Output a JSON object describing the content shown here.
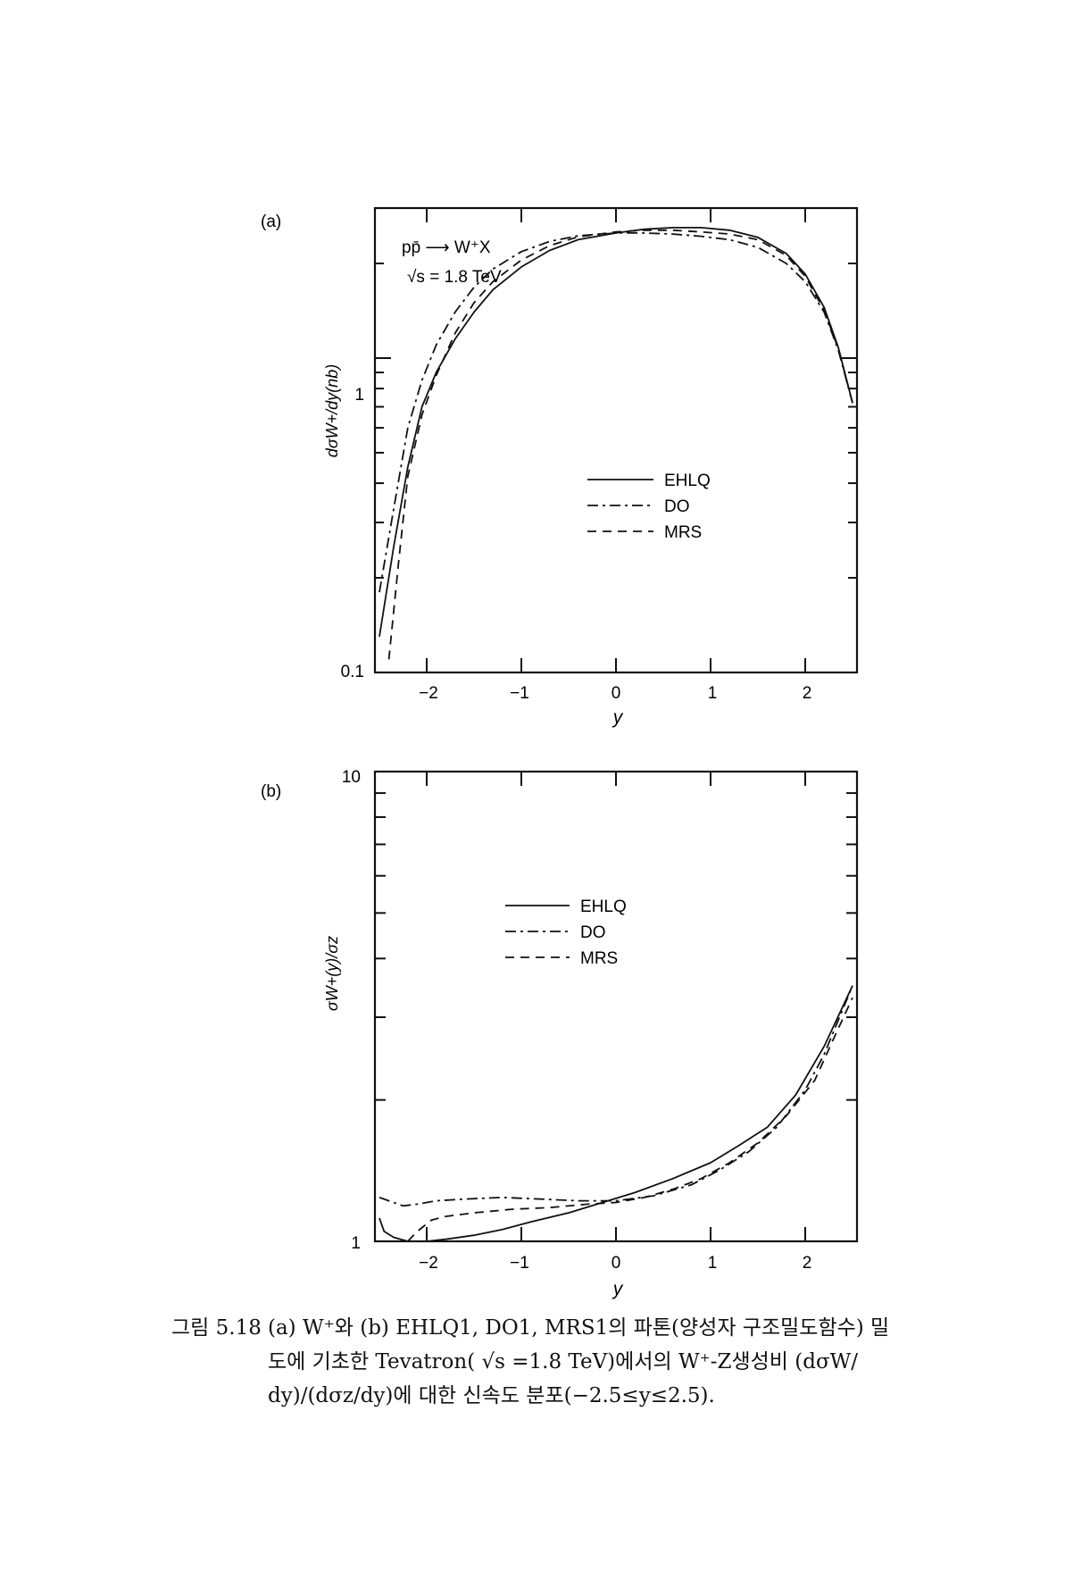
{
  "chart_data": [
    {
      "type": "line",
      "panel_label": "(a)",
      "annotation": [
        "pp̄ ⟶ W⁺X",
        "√s = 1.8 TeV"
      ],
      "xlabel": "y",
      "ylabel": "dσW+/dy(nb)",
      "xlim": [
        -2.5,
        2.5
      ],
      "ylim": [
        0.1,
        3.0
      ],
      "yscale": "log",
      "x_ticks": [
        "−2",
        "−1",
        "0",
        "1",
        "2"
      ],
      "y_ticks": [
        "0.1",
        "1"
      ],
      "legend_position": "center-right",
      "series": [
        {
          "name": "EHLQ",
          "style": "solid",
          "x": [
            -2.5,
            -2.35,
            -2.2,
            -2.05,
            -1.9,
            -1.7,
            -1.5,
            -1.3,
            -1.0,
            -0.7,
            -0.4,
            0.0,
            0.3,
            0.6,
            0.9,
            1.2,
            1.5,
            1.8,
            2.0,
            2.2,
            2.35,
            2.5
          ],
          "y": [
            0.13,
            0.25,
            0.45,
            0.7,
            0.9,
            1.15,
            1.4,
            1.65,
            1.95,
            2.2,
            2.38,
            2.5,
            2.57,
            2.6,
            2.6,
            2.55,
            2.42,
            2.15,
            1.85,
            1.45,
            1.08,
            0.72
          ]
        },
        {
          "name": "DO",
          "style": "dashdot",
          "x": [
            -2.5,
            -2.35,
            -2.2,
            -2.05,
            -1.9,
            -1.7,
            -1.5,
            -1.3,
            -1.0,
            -0.7,
            -0.4,
            0.0,
            0.3,
            0.6,
            0.9,
            1.2,
            1.5,
            1.8,
            2.0,
            2.2,
            2.35,
            2.5
          ],
          "y": [
            0.18,
            0.33,
            0.6,
            0.85,
            1.1,
            1.4,
            1.68,
            1.92,
            2.18,
            2.35,
            2.45,
            2.5,
            2.5,
            2.48,
            2.44,
            2.38,
            2.25,
            2.0,
            1.75,
            1.4,
            1.06,
            0.72
          ]
        },
        {
          "name": "MRS",
          "style": "dashed",
          "x": [
            -2.4,
            -2.3,
            -2.2,
            -2.05,
            -1.9,
            -1.7,
            -1.5,
            -1.3,
            -1.0,
            -0.7,
            -0.4,
            0.0,
            0.3,
            0.6,
            0.9,
            1.2,
            1.5,
            1.8,
            2.0,
            2.2,
            2.35,
            2.5
          ],
          "y": [
            0.11,
            0.22,
            0.42,
            0.66,
            0.88,
            1.2,
            1.5,
            1.75,
            2.05,
            2.28,
            2.43,
            2.52,
            2.55,
            2.55,
            2.52,
            2.48,
            2.38,
            2.12,
            1.82,
            1.42,
            1.07,
            0.72
          ]
        }
      ]
    },
    {
      "type": "line",
      "panel_label": "(b)",
      "xlabel": "y",
      "ylabel": "σW+(y)/σz",
      "xlim": [
        -2.5,
        2.5
      ],
      "ylim": [
        1,
        10
      ],
      "yscale": "log",
      "x_ticks": [
        "−2",
        "−1",
        "0",
        "1",
        "2"
      ],
      "y_ticks": [
        "1",
        "10"
      ],
      "legend_position": "upper-center",
      "series": [
        {
          "name": "EHLQ",
          "style": "solid",
          "x": [
            -2.5,
            -2.45,
            -2.35,
            -2.2,
            -2.0,
            -1.8,
            -1.5,
            -1.2,
            -0.9,
            -0.5,
            -0.2,
            0.2,
            0.6,
            1.0,
            1.3,
            1.6,
            1.9,
            2.2,
            2.5
          ],
          "y": [
            1.12,
            1.05,
            1.02,
            1.0,
            1.0,
            1.01,
            1.03,
            1.06,
            1.1,
            1.15,
            1.2,
            1.27,
            1.36,
            1.47,
            1.6,
            1.75,
            2.05,
            2.6,
            3.5
          ]
        },
        {
          "name": "DO",
          "style": "dashdot",
          "x": [
            -2.5,
            -2.4,
            -2.25,
            -2.1,
            -1.9,
            -1.6,
            -1.2,
            -0.8,
            -0.4,
            0.0,
            0.4,
            0.8,
            1.1,
            1.4,
            1.7,
            2.0,
            2.2,
            2.5
          ],
          "y": [
            1.24,
            1.22,
            1.19,
            1.2,
            1.22,
            1.23,
            1.24,
            1.23,
            1.22,
            1.22,
            1.25,
            1.32,
            1.42,
            1.55,
            1.75,
            2.1,
            2.5,
            3.5
          ]
        },
        {
          "name": "MRS",
          "style": "dashed",
          "x": [
            -2.2,
            -2.1,
            -1.95,
            -1.8,
            -1.5,
            -1.1,
            -0.7,
            -0.3,
            0.0,
            0.3,
            0.6,
            0.9,
            1.2,
            1.5,
            1.8,
            2.1,
            2.3,
            2.5
          ],
          "y": [
            1.0,
            1.05,
            1.11,
            1.13,
            1.15,
            1.17,
            1.18,
            1.2,
            1.21,
            1.24,
            1.29,
            1.36,
            1.47,
            1.62,
            1.85,
            2.2,
            2.7,
            3.3
          ]
        }
      ]
    }
  ],
  "caption": {
    "label": "그림 5.18",
    "line1": "(a) W⁺와 (b) EHLQ1, DO1, MRS1의 파톤(양성자 구조밀도함수) 밀",
    "line2": "도에  기초한  Tevatron( √s =1.8 TeV)에서의  W⁺-Z생성비  (dσW/",
    "line3": "dy)/(dσz/dy)에 대한 신속도 분포(−2.5≤y≤2.5)."
  }
}
